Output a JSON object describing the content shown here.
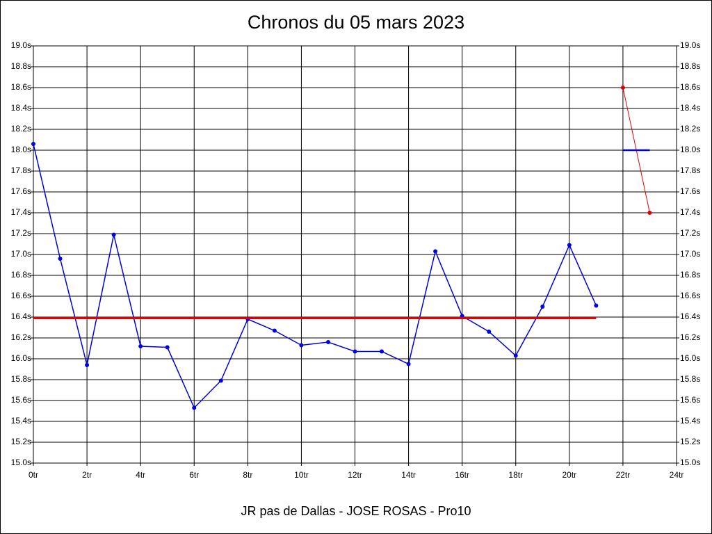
{
  "chart_data": {
    "type": "line",
    "title": "Chronos du 05 mars 2023",
    "xlabel": "JR pas de Dallas - JOSE ROSAS - Pro10",
    "x": [
      0,
      1,
      2,
      3,
      4,
      5,
      6,
      7,
      8,
      9,
      10,
      11,
      12,
      13,
      14,
      15,
      16,
      17,
      18,
      19,
      20,
      21,
      22,
      23
    ],
    "series": [
      {
        "color": "#0000e0",
        "width": 1.5,
        "markers": true,
        "values": [
          18.06,
          16.96,
          15.94,
          17.19,
          16.12,
          16.11,
          15.53,
          15.79,
          16.38,
          16.27,
          16.13,
          16.16,
          16.07,
          16.07,
          15.95,
          17.03,
          16.41,
          16.26,
          16.03,
          16.5,
          17.09,
          16.51,
          null,
          null
        ]
      },
      {
        "color": "#e00000",
        "width": 1,
        "markers": true,
        "values": [
          null,
          null,
          null,
          null,
          null,
          null,
          null,
          null,
          null,
          null,
          null,
          null,
          null,
          null,
          null,
          null,
          null,
          null,
          null,
          null,
          null,
          null,
          18.6,
          17.4
        ]
      },
      {
        "color": "#e00000",
        "width": 3,
        "markers": false,
        "values": [
          16.39,
          16.39,
          16.39,
          16.39,
          16.39,
          16.39,
          16.39,
          16.39,
          16.39,
          16.39,
          16.39,
          16.39,
          16.39,
          16.39,
          16.39,
          16.39,
          16.39,
          16.39,
          16.39,
          16.39,
          16.39,
          16.39,
          null,
          null
        ]
      },
      {
        "color": "#0000e0",
        "width": 2.5,
        "markers": false,
        "values": [
          null,
          null,
          null,
          null,
          null,
          null,
          null,
          null,
          null,
          null,
          null,
          null,
          null,
          null,
          null,
          null,
          null,
          null,
          null,
          null,
          null,
          null,
          18.0,
          18.0
        ]
      }
    ],
    "xlim": [
      0,
      24
    ],
    "xticks": [
      {
        "value": 0,
        "label": "0tr"
      },
      {
        "value": 2,
        "label": "2tr"
      },
      {
        "value": 4,
        "label": "4tr"
      },
      {
        "value": 6,
        "label": "6tr"
      },
      {
        "value": 8,
        "label": "8tr"
      },
      {
        "value": 10,
        "label": "10tr"
      },
      {
        "value": 12,
        "label": "12tr"
      },
      {
        "value": 14,
        "label": "14tr"
      },
      {
        "value": 16,
        "label": "16tr"
      },
      {
        "value": 18,
        "label": "18tr"
      },
      {
        "value": 20,
        "label": "20tr"
      },
      {
        "value": 22,
        "label": "22tr"
      },
      {
        "value": 24,
        "label": "24tr"
      }
    ],
    "ylim": [
      15,
      19
    ],
    "yticks": [
      {
        "value": 15,
        "label": "15.0s"
      },
      {
        "value": 15.2,
        "label": "15.2s"
      },
      {
        "value": 15.4,
        "label": "15.4s"
      },
      {
        "value": 15.6,
        "label": "15.6s"
      },
      {
        "value": 15.8,
        "label": "15.8s"
      },
      {
        "value": 16,
        "label": "16.0s"
      },
      {
        "value": 16.2,
        "label": "16.2s"
      },
      {
        "value": 16.4,
        "label": "16.4s"
      },
      {
        "value": 16.6,
        "label": "16.6s"
      },
      {
        "value": 16.8,
        "label": "16.8s"
      },
      {
        "value": 17,
        "label": "17.0s"
      },
      {
        "value": 17.2,
        "label": "17.2s"
      },
      {
        "value": 17.4,
        "label": "17.4s"
      },
      {
        "value": 17.6,
        "label": "17.6s"
      },
      {
        "value": 17.8,
        "label": "17.8s"
      },
      {
        "value": 18,
        "label": "18.0s"
      },
      {
        "value": 18.2,
        "label": "18.2s"
      },
      {
        "value": 18.4,
        "label": "18.4s"
      },
      {
        "value": 18.6,
        "label": "18.6s"
      },
      {
        "value": 18.8,
        "label": "18.8s"
      },
      {
        "value": 19,
        "label": "19.0s"
      }
    ],
    "grid": true
  }
}
